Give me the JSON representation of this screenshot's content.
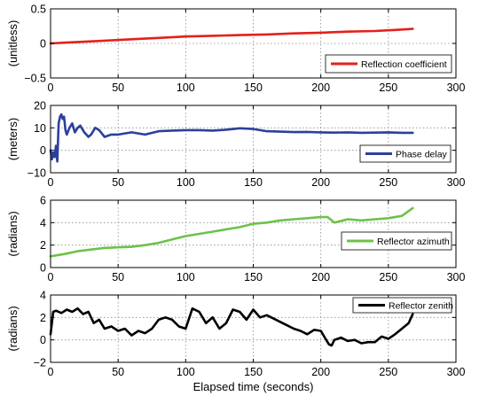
{
  "figure": {
    "xlabel": "Elapsed time (seconds)"
  },
  "chart_data": [
    {
      "type": "line",
      "ylabel": "(unitless)",
      "xlim": [
        0,
        300
      ],
      "ylim": [
        -0.5,
        0.5
      ],
      "xticks": [
        0,
        50,
        100,
        150,
        200,
        250,
        300
      ],
      "yticks": [
        -0.5,
        0,
        0.5
      ],
      "ytick_labels": [
        "−0.5",
        "0",
        "0.5"
      ],
      "grid": true,
      "legend_position": "right",
      "series": [
        {
          "name": "Reflection coefficient",
          "color": "#e3201b",
          "x": [
            0,
            10,
            20,
            40,
            60,
            80,
            100,
            120,
            140,
            160,
            180,
            200,
            220,
            240,
            255,
            268
          ],
          "y": [
            0.0,
            0.01,
            0.02,
            0.04,
            0.06,
            0.08,
            0.1,
            0.11,
            0.12,
            0.13,
            0.145,
            0.155,
            0.17,
            0.18,
            0.195,
            0.21
          ]
        }
      ]
    },
    {
      "type": "line",
      "ylabel": "(meters)",
      "xlim": [
        0,
        300
      ],
      "ylim": [
        -10,
        20
      ],
      "xticks": [
        0,
        50,
        100,
        150,
        200,
        250,
        300
      ],
      "yticks": [
        -10,
        0,
        10,
        20
      ],
      "ytick_labels": [
        "−10",
        "0",
        "10",
        "20"
      ],
      "grid": true,
      "legend_position": "right",
      "series": [
        {
          "name": "Phase delay",
          "color": "#2c3f9c",
          "x": [
            0,
            1,
            2,
            3,
            4,
            5,
            6,
            7,
            8,
            9,
            10,
            11,
            12,
            14,
            16,
            18,
            20,
            22,
            25,
            28,
            30,
            33,
            36,
            40,
            45,
            50,
            60,
            70,
            80,
            90,
            100,
            110,
            120,
            130,
            140,
            150,
            160,
            170,
            180,
            190,
            200,
            210,
            220,
            230,
            240,
            250,
            260,
            268
          ],
          "y": [
            0,
            -4,
            -1,
            -3,
            2,
            -5,
            12,
            15,
            16,
            14,
            15,
            9,
            7,
            10,
            12,
            8,
            10,
            11,
            8,
            6,
            7,
            10,
            9,
            6,
            7,
            7,
            8,
            7,
            8.5,
            8.8,
            9,
            9,
            8.8,
            9.2,
            9.8,
            9.5,
            8.5,
            8.3,
            8.1,
            8.2,
            8,
            7.9,
            8,
            7.8,
            7.9,
            8,
            7.8,
            7.8
          ]
        }
      ]
    },
    {
      "type": "line",
      "ylabel": "(radians)",
      "xlim": [
        0,
        300
      ],
      "ylim": [
        0,
        6
      ],
      "xticks": [
        0,
        50,
        100,
        150,
        200,
        250,
        300
      ],
      "yticks": [
        0,
        2,
        4,
        6
      ],
      "ytick_labels": [
        "0",
        "2",
        "4",
        "6"
      ],
      "grid": true,
      "legend_position": "right",
      "series": [
        {
          "name": "Reflector azimuth",
          "color": "#6cc24a",
          "x": [
            0,
            10,
            20,
            30,
            40,
            50,
            60,
            70,
            80,
            90,
            100,
            110,
            120,
            130,
            140,
            150,
            160,
            170,
            180,
            190,
            200,
            205,
            210,
            220,
            230,
            240,
            250,
            260,
            268
          ],
          "y": [
            1.0,
            1.2,
            1.45,
            1.6,
            1.75,
            1.8,
            1.85,
            2.0,
            2.2,
            2.5,
            2.8,
            3.0,
            3.2,
            3.4,
            3.6,
            3.9,
            4.0,
            4.2,
            4.3,
            4.4,
            4.5,
            4.5,
            4.0,
            4.3,
            4.2,
            4.3,
            4.4,
            4.6,
            5.3
          ]
        }
      ]
    },
    {
      "type": "line",
      "ylabel": "(radians)",
      "xlim": [
        0,
        300
      ],
      "ylim": [
        -2,
        4
      ],
      "xticks": [
        0,
        50,
        100,
        150,
        200,
        250,
        300
      ],
      "yticks": [
        -2,
        0,
        2,
        4
      ],
      "ytick_labels": [
        "−2",
        "0",
        "2",
        "4"
      ],
      "grid": true,
      "legend_position": "top-right",
      "series": [
        {
          "name": "Reflector zenith",
          "color": "#000000",
          "x": [
            0,
            2,
            4,
            8,
            12,
            16,
            20,
            24,
            28,
            32,
            36,
            40,
            45,
            50,
            55,
            60,
            65,
            70,
            75,
            80,
            85,
            90,
            95,
            100,
            105,
            110,
            115,
            120,
            125,
            130,
            135,
            140,
            145,
            150,
            155,
            160,
            165,
            170,
            175,
            180,
            185,
            190,
            195,
            200,
            203,
            206,
            208,
            210,
            215,
            220,
            225,
            230,
            235,
            240,
            245,
            250,
            255,
            260,
            265,
            268
          ],
          "y": [
            0.5,
            2.5,
            2.6,
            2.4,
            2.7,
            2.5,
            2.8,
            2.3,
            2.5,
            1.5,
            1.8,
            1.0,
            1.2,
            0.8,
            1.0,
            0.4,
            0.8,
            0.6,
            1.0,
            1.8,
            2.0,
            1.8,
            1.2,
            1.0,
            2.8,
            2.5,
            1.5,
            2.0,
            1.0,
            1.5,
            2.7,
            2.5,
            1.8,
            2.7,
            2.0,
            2.2,
            1.9,
            1.6,
            1.3,
            1.0,
            0.8,
            0.5,
            0.9,
            0.8,
            0.2,
            -0.4,
            -0.5,
            0.0,
            0.2,
            -0.1,
            0.0,
            -0.3,
            -0.2,
            -0.2,
            0.3,
            0.1,
            0.5,
            1.0,
            1.5,
            2.3
          ]
        }
      ]
    }
  ]
}
